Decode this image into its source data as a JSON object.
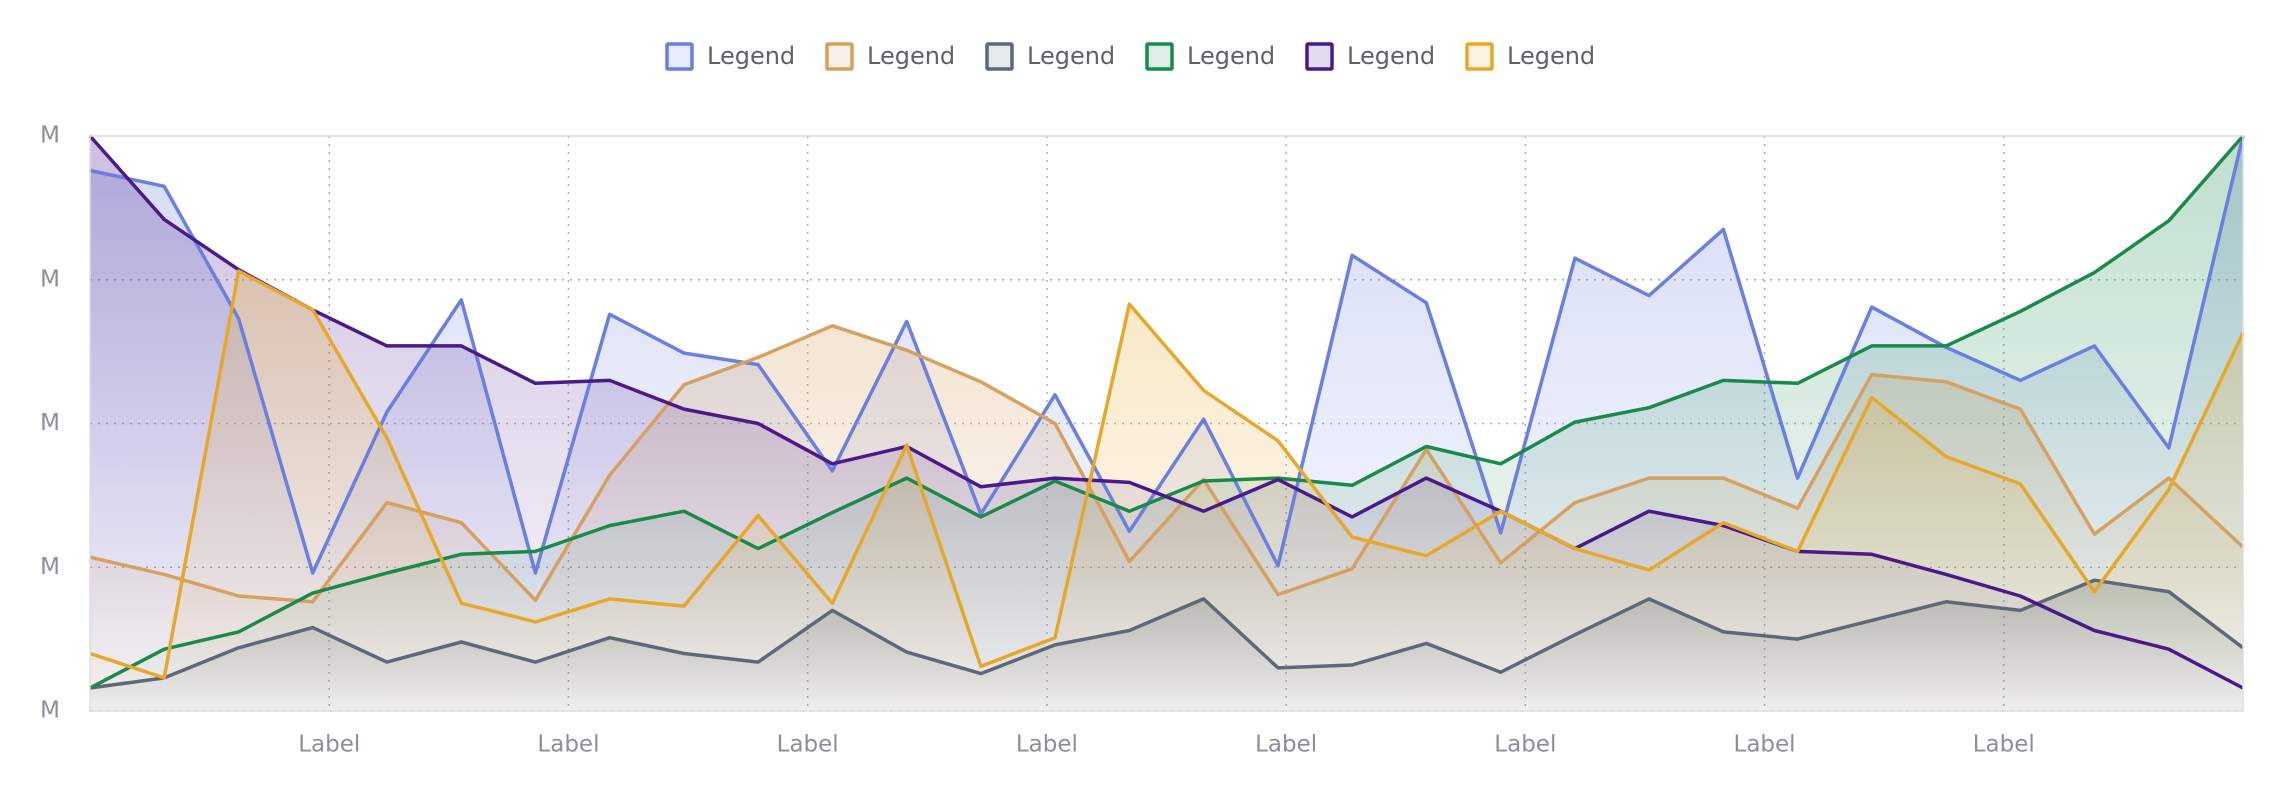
{
  "chart_data": {
    "type": "area",
    "x": [
      0,
      0.31,
      0.621,
      0.931,
      1.241,
      1.552,
      1.862,
      2.172,
      2.483,
      2.793,
      3.103,
      3.414,
      3.724,
      4.034,
      4.345,
      4.655,
      4.966,
      5.276,
      5.586,
      5.897,
      6.207,
      6.517,
      6.828,
      7.138,
      7.448,
      7.759,
      8.069,
      8.379,
      8.69,
      9
    ],
    "xlim": [
      0,
      9
    ],
    "xticks": [
      {
        "value": 1,
        "label": "Label"
      },
      {
        "value": 2,
        "label": "Label"
      },
      {
        "value": 3,
        "label": "Label"
      },
      {
        "value": 4,
        "label": "Label"
      },
      {
        "value": 5,
        "label": "Label"
      },
      {
        "value": 6,
        "label": "Label"
      },
      {
        "value": 7,
        "label": "Label"
      },
      {
        "value": 8,
        "label": "Label"
      }
    ],
    "ylim": [
      0,
      4
    ],
    "yticks": [
      {
        "value": 0,
        "label": "M"
      },
      {
        "value": 1,
        "label": "M"
      },
      {
        "value": 2,
        "label": "M"
      },
      {
        "value": 3,
        "label": "M"
      },
      {
        "value": 4,
        "label": "M"
      }
    ],
    "grid": true,
    "legend": "top",
    "series": [
      {
        "name": "Legend",
        "color": "#6a7fdf",
        "values": [
          3.76,
          3.65,
          2.73,
          0.96,
          2.08,
          2.86,
          0.96,
          2.76,
          2.49,
          2.41,
          1.67,
          2.71,
          1.37,
          2.2,
          1.25,
          2.03,
          1.01,
          3.17,
          2.84,
          1.24,
          3.15,
          2.89,
          3.35,
          1.62,
          2.81,
          2.53,
          2.3,
          2.54,
          1.83,
          4.0
        ]
      },
      {
        "name": "Legend",
        "color": "#d6a060",
        "values": [
          1.07,
          0.95,
          0.8,
          0.76,
          1.45,
          1.31,
          0.77,
          1.64,
          2.27,
          2.46,
          2.68,
          2.51,
          2.29,
          2.0,
          1.04,
          1.61,
          0.81,
          0.99,
          1.82,
          1.03,
          1.45,
          1.62,
          1.62,
          1.41,
          2.34,
          2.29,
          2.1,
          1.23,
          1.62,
          1.14
        ]
      },
      {
        "name": "Legend",
        "color": "#5f6878",
        "values": [
          0.16,
          0.23,
          0.44,
          0.58,
          0.34,
          0.48,
          0.34,
          0.51,
          0.4,
          0.34,
          0.7,
          0.41,
          0.26,
          0.46,
          0.56,
          0.78,
          0.3,
          0.32,
          0.47,
          0.27,
          0.53,
          0.78,
          0.55,
          0.5,
          0.63,
          0.76,
          0.7,
          0.91,
          0.83,
          0.44
        ]
      },
      {
        "name": "Legend",
        "color": "#1a8a4a",
        "values": [
          0.16,
          0.43,
          0.55,
          0.82,
          0.96,
          1.09,
          1.11,
          1.29,
          1.39,
          1.13,
          1.38,
          1.62,
          1.35,
          1.6,
          1.39,
          1.6,
          1.62,
          1.57,
          1.84,
          1.72,
          2.01,
          2.11,
          2.3,
          2.28,
          2.54,
          2.54,
          2.78,
          3.05,
          3.41,
          4.0
        ]
      },
      {
        "name": "Legend",
        "color": "#4a1a8a",
        "values": [
          4.0,
          3.42,
          3.07,
          2.79,
          2.54,
          2.54,
          2.28,
          2.3,
          2.1,
          2.0,
          1.72,
          1.84,
          1.56,
          1.62,
          1.59,
          1.39,
          1.61,
          1.35,
          1.62,
          1.39,
          1.13,
          1.39,
          1.29,
          1.11,
          1.09,
          0.95,
          0.8,
          0.56,
          0.43,
          0.16
        ]
      },
      {
        "name": "Legend",
        "color": "#e5a82a",
        "values": [
          0.4,
          0.23,
          3.06,
          2.79,
          1.9,
          0.75,
          0.62,
          0.78,
          0.73,
          1.36,
          0.75,
          1.85,
          0.31,
          0.51,
          2.83,
          2.23,
          1.88,
          1.21,
          1.08,
          1.39,
          1.13,
          0.98,
          1.31,
          1.11,
          2.18,
          1.77,
          1.58,
          0.83,
          1.54,
          2.63
        ]
      }
    ]
  }
}
